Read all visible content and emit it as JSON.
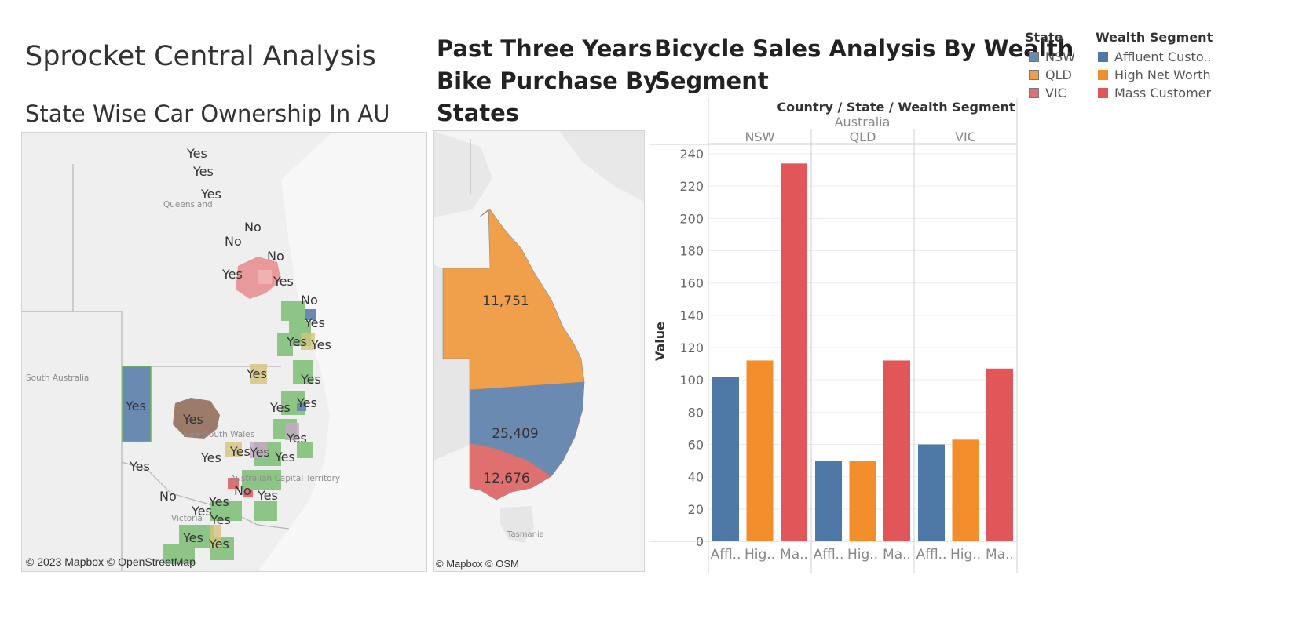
{
  "dashboard": {
    "title": "Sprocket Central Analysis"
  },
  "car_map": {
    "title": "State Wise Car Ownership In AU",
    "credit": "© 2023 Mapbox © OpenStreetMap",
    "place_labels": [
      "Queensland",
      "New South Wales",
      "Victoria",
      "Australian Capital Territory",
      "South Australia"
    ],
    "markers": [
      {
        "label": "Yes"
      },
      {
        "label": "Yes"
      },
      {
        "label": "Yes"
      },
      {
        "label": "No"
      },
      {
        "label": "No"
      },
      {
        "label": "No"
      },
      {
        "label": "Yes"
      },
      {
        "label": "Yes"
      },
      {
        "label": "No"
      },
      {
        "label": "Yes"
      },
      {
        "label": "Yes"
      },
      {
        "label": "Yes"
      },
      {
        "label": "Yes"
      },
      {
        "label": "Yes"
      },
      {
        "label": "Yes"
      },
      {
        "label": "Yes"
      },
      {
        "label": "Yes"
      },
      {
        "label": "Yes"
      },
      {
        "label": "Yes"
      },
      {
        "label": "Yes"
      },
      {
        "label": "Yes"
      },
      {
        "label": "Yes"
      },
      {
        "label": "Yes"
      },
      {
        "label": "Yes"
      },
      {
        "label": "No"
      },
      {
        "label": "No"
      },
      {
        "label": "Yes"
      },
      {
        "label": "Yes"
      },
      {
        "label": "Yes"
      },
      {
        "label": "Yes"
      },
      {
        "label": "Yes"
      },
      {
        "label": "Yes"
      }
    ]
  },
  "purchase_map": {
    "title_lines": [
      "Past Three Years",
      "Bike Purchase By",
      "States"
    ],
    "credit": "© Mapbox © OSM",
    "place_label": "Tasmania",
    "regions": [
      {
        "state": "QLD",
        "value": "11,751",
        "color": "#f0a04b"
      },
      {
        "state": "NSW",
        "value": "25,409",
        "color": "#6b8ab2"
      },
      {
        "state": "VIC",
        "value": "12,676",
        "color": "#e0706f"
      }
    ]
  },
  "chart_data": {
    "type": "bar",
    "title_lines": [
      "Bicycle Sales Analysis By Wealth",
      "Segment"
    ],
    "header": "Country / State / Wealth Segment",
    "country": "Australia",
    "ylabel": "Value",
    "ylim": [
      0,
      240
    ],
    "yticks": [
      0,
      20,
      40,
      60,
      80,
      100,
      120,
      140,
      160,
      180,
      200,
      220,
      240
    ],
    "states": [
      "NSW",
      "QLD",
      "VIC"
    ],
    "category_labels": [
      "Affl..",
      "Hig..",
      "Ma.."
    ],
    "series": [
      {
        "name": "Affluent Customer",
        "color": "#4e79a7",
        "values": [
          102,
          50,
          60
        ]
      },
      {
        "name": "High Net Worth",
        "color": "#f28e2b",
        "values": [
          112,
          50,
          63
        ]
      },
      {
        "name": "Mass Customer",
        "color": "#e15759",
        "values": [
          234,
          112,
          107
        ]
      }
    ]
  },
  "legend": {
    "state_title": "State",
    "states": [
      {
        "label": "NSW",
        "color": "#6b8ab2"
      },
      {
        "label": "QLD",
        "color": "#f0a04b"
      },
      {
        "label": "VIC",
        "color": "#e0706f"
      }
    ],
    "segment_title": "Wealth Segment",
    "segments": [
      {
        "label": "Affluent Custo..",
        "color": "#4e79a7"
      },
      {
        "label": "High Net Worth",
        "color": "#f28e2b"
      },
      {
        "label": "Mass Customer",
        "color": "#e15759"
      }
    ]
  }
}
